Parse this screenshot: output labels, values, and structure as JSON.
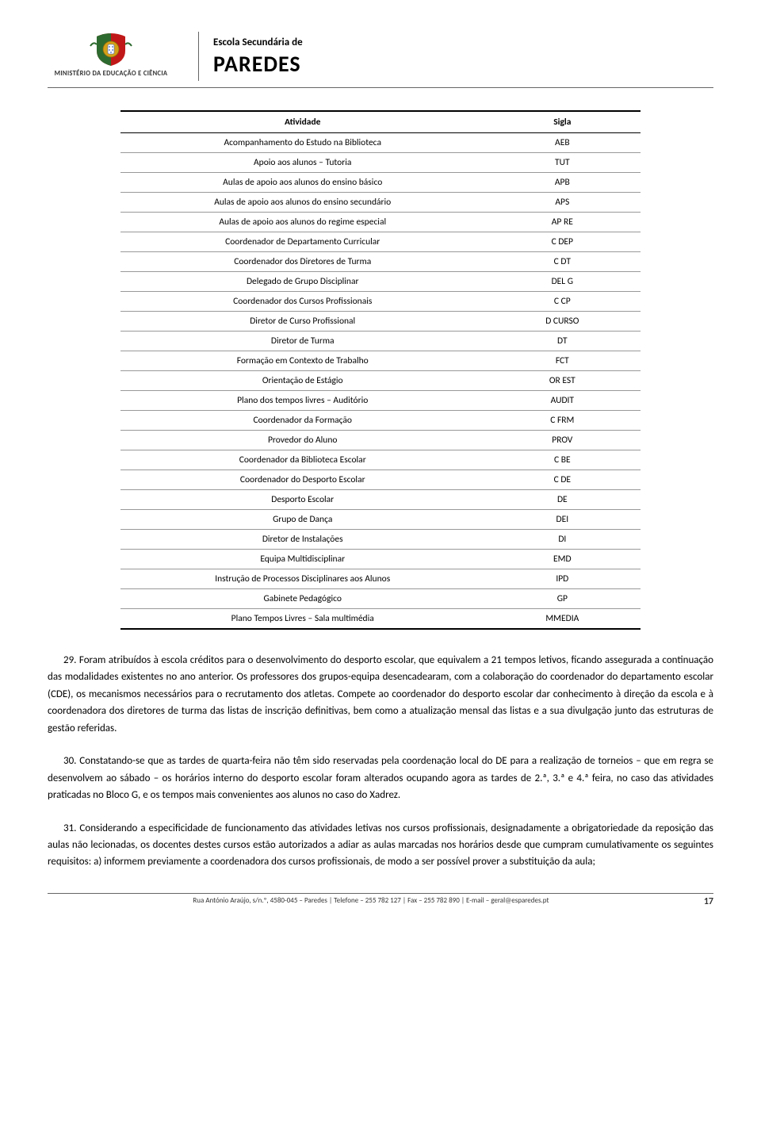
{
  "header": {
    "ministry": "MINISTÉRIO DA EDUCAÇÃO E CIÊNCIA",
    "school_line1": "Escola Secundária de",
    "school_line2": "PAREDES"
  },
  "table": {
    "col_activity": "Atividade",
    "col_sigla": "Sigla",
    "rows": [
      {
        "a": "Acompanhamento do Estudo na Biblioteca",
        "s": "AEB"
      },
      {
        "a": "Apoio aos alunos – Tutoria",
        "s": "TUT"
      },
      {
        "a": "Aulas de apoio aos alunos do ensino básico",
        "s": "APB"
      },
      {
        "a": "Aulas de apoio aos alunos do ensino secundário",
        "s": "APS"
      },
      {
        "a": "Aulas de apoio aos alunos do regime especial",
        "s": "AP RE"
      },
      {
        "a": "Coordenador de Departamento Curricular",
        "s": "C DEP"
      },
      {
        "a": "Coordenador dos Diretores de Turma",
        "s": "C DT"
      },
      {
        "a": "Delegado de Grupo Disciplinar",
        "s": "DEL G"
      },
      {
        "a": "Coordenador dos Cursos Profissionais",
        "s": "C CP"
      },
      {
        "a": "Diretor de Curso Profissional",
        "s": "D CURSO"
      },
      {
        "a": "Diretor de Turma",
        "s": "DT"
      },
      {
        "a": "Formação em Contexto de Trabalho",
        "s": "FCT"
      },
      {
        "a": "Orientação de Estágio",
        "s": "OR EST"
      },
      {
        "a": "Plano dos tempos livres – Auditório",
        "s": "AUDIT"
      },
      {
        "a": "Coordenador da Formação",
        "s": "C FRM"
      },
      {
        "a": "Provedor do Aluno",
        "s": "PROV"
      },
      {
        "a": "Coordenador da Biblioteca Escolar",
        "s": "C BE"
      },
      {
        "a": "Coordenador do Desporto Escolar",
        "s": "C DE"
      },
      {
        "a": "Desporto Escolar",
        "s": "DE"
      },
      {
        "a": "Grupo de Dança",
        "s": "DEI"
      },
      {
        "a": "Diretor de Instalações",
        "s": "DI"
      },
      {
        "a": "Equipa Multidisciplinar",
        "s": "EMD"
      },
      {
        "a": "Instrução de Processos Disciplinares aos Alunos",
        "s": "IPD"
      },
      {
        "a": "Gabinete Pedagógico",
        "s": "GP"
      },
      {
        "a": "Plano Tempos Livres – Sala multimédia",
        "s": "MMEDIA"
      }
    ]
  },
  "paragraphs": {
    "p29": "29. Foram atribuídos à escola créditos para o desenvolvimento do desporto escolar, que equivalem a 21 tempos letivos, ficando assegurada a continuação das modalidades existentes no ano anterior. Os professores dos grupos-equipa desencadearam, com a colaboração do coordenador do departamento escolar (CDE), os mecanismos necessários para o recrutamento dos atletas. Compete ao coordenador do desporto escolar dar conhecimento à direção da escola e à coordenadora dos diretores de turma das listas de inscrição definitivas, bem como a atualização mensal das listas e a sua divulgação junto das estruturas de gestão referidas.",
    "p30": "30. Constatando-se que as tardes de quarta-feira não têm sido reservadas pela coordenação local do DE para a realização de torneios – que em regra se desenvolvem ao sábado – os horários interno do desporto escolar foram alterados ocupando agora as tardes de 2.ª, 3.ª e 4.ª feira, no caso das atividades praticadas no Bloco G, e os tempos mais convenientes aos alunos no caso do Xadrez.",
    "p31": "31. Considerando a especificidade de funcionamento das atividades letivas nos cursos profissionais, designadamente a obrigatoriedade da reposição das aulas não lecionadas, os docentes destes cursos estão autorizados a adiar as aulas marcadas nos horários desde que cumpram cumulativamente os seguintes requisitos: a) informem previamente a coordenadora dos cursos profissionais, de modo a ser possível prover a substituição da aula;"
  },
  "footer": {
    "address": "Rua António Araújo, s/n.º, 4580-045 – Paredes | Telefone – 255 782 127 | Fax – 255 782 890 | E-mail – geral@esparedes.pt",
    "page_number": "17"
  },
  "colors": {
    "text": "#000000",
    "rule": "#666666",
    "row_border": "#999999",
    "crest_green": "#2d6a2f",
    "crest_red": "#c01818",
    "crest_gold": "#d4a017"
  }
}
